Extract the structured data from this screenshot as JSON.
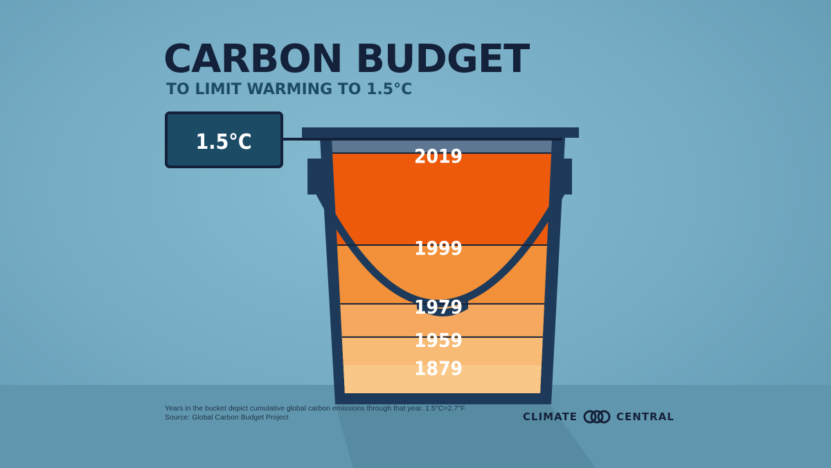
{
  "colors": {
    "bucket": "#1e3a5a",
    "empty": "#5d7792",
    "band_2019": "#ee5a0c",
    "band_1999": "#f2913a",
    "band_1979": "#f6a95e",
    "band_1959": "#f8bb76",
    "band_1879": "#f9c888",
    "label_box": "#1c4b66"
  },
  "chart_data": {
    "type": "bar",
    "title": "CARBON BUDGET",
    "subtitle": "TO LIMIT WARMING TO 1.5°C",
    "limit_label": "1.5°C",
    "categories": [
      "1879",
      "1959",
      "1979",
      "1999",
      "2019"
    ],
    "values": [
      0.11,
      0.22,
      0.35,
      0.58,
      0.94
    ],
    "value_unit": "fraction of 1.5°C carbon budget (approx.)"
  },
  "footnote": {
    "line1": "Years in the bucket depict cumulative global carbon emissions through that year. 1.5°C=2.7°F",
    "line2": "Source: Global Carbon Budget Project"
  },
  "logo": {
    "left": "CLIMATE",
    "right": "CENTRAL",
    "mark": "climate-central-logo-icon"
  }
}
